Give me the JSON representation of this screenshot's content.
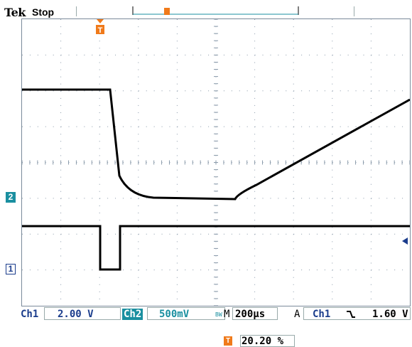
{
  "header": {
    "brand": "Tek",
    "acquisition_state": "Stop"
  },
  "markers": {
    "ch2": "2",
    "ch1": "1",
    "trigger": "T"
  },
  "status": {
    "ch1_label": "Ch1",
    "ch1_scale": "2.00 V",
    "ch2_label": "Ch2",
    "ch2_scale": "500mV",
    "bandwidth_limit": "BW",
    "timebase_prefix": "M",
    "timebase": "200µs",
    "trigger_mode": "A",
    "trigger_source": "Ch1",
    "trigger_slope_icon": "falling-edge-icon",
    "trigger_level": "1.60 V"
  },
  "horizontal_position": {
    "icon": "T",
    "value": "20.20 %"
  },
  "colors": {
    "ch1": "#1a3c8c",
    "ch2": "#1a8fa0",
    "trigger": "#f07a1a",
    "trace": "#000000",
    "grid": "#8a9aaa"
  }
}
